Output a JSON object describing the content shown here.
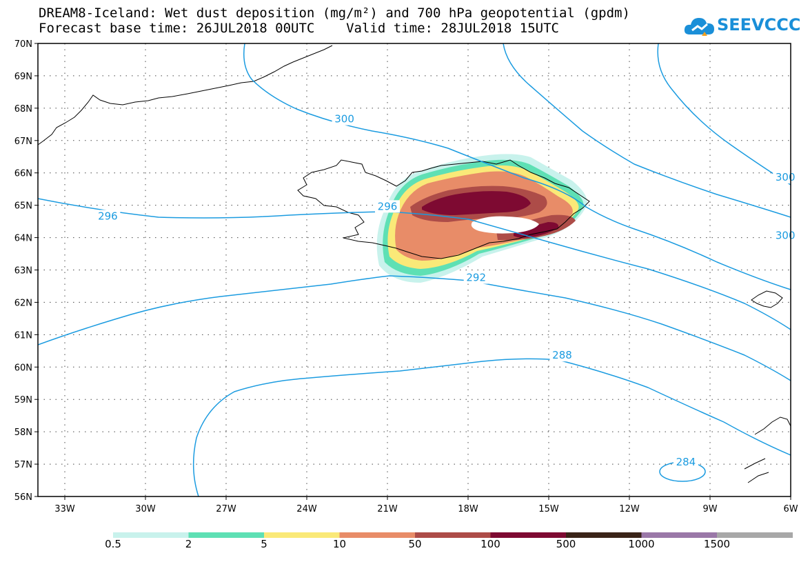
{
  "header": {
    "title_line1": "DREAM8-Iceland: Wet dust deposition (mg/m²) and 700 hPa geopotential (gpdm)",
    "title_line2": "Forecast base time: 26JUL2018 00UTC    Valid time: 28JUL2018 15UTC"
  },
  "logo": {
    "text": "SEEVCCC",
    "icon": "cloud-icon",
    "color": "#1a8fd8"
  },
  "map": {
    "region": "Iceland",
    "lon_range": [
      -34,
      -6
    ],
    "lat_range": [
      56,
      70
    ],
    "lat_labels": [
      "70N",
      "69N",
      "68N",
      "67N",
      "66N",
      "65N",
      "64N",
      "63N",
      "62N",
      "61N",
      "60N",
      "59N",
      "58N",
      "57N",
      "56N"
    ],
    "lon_labels": [
      "33W",
      "30W",
      "27W",
      "24W",
      "21W",
      "18W",
      "15W",
      "12W",
      "9W",
      "6W"
    ],
    "gridlines": "dotted",
    "contour_color": "#1a9be0",
    "contour_labels": [
      {
        "text": "300",
        "lon": -22.6,
        "lat": 67.6
      },
      {
        "text": "300",
        "lon": -6.2,
        "lat": 65.8
      },
      {
        "text": "300",
        "lon": -6.2,
        "lat": 64.0
      },
      {
        "text": "296",
        "lon": -31.4,
        "lat": 64.6
      },
      {
        "text": "296",
        "lon": -21.0,
        "lat": 64.9
      },
      {
        "text": "292",
        "lon": -17.7,
        "lat": 62.7
      },
      {
        "text": "288",
        "lon": -14.5,
        "lat": 60.3
      },
      {
        "text": "284",
        "lon": -9.9,
        "lat": 57.0
      }
    ]
  },
  "colorbar": {
    "labels": [
      "0.5",
      "2",
      "5",
      "10",
      "50",
      "100",
      "500",
      "1000",
      "1500"
    ],
    "colors": [
      "#c8f2ec",
      "#5ee0b4",
      "#fae978",
      "#e88c68",
      "#ad4c48",
      "#7e0a32",
      "#3a2418",
      "#9a78a8",
      "#a8a8a8"
    ]
  }
}
